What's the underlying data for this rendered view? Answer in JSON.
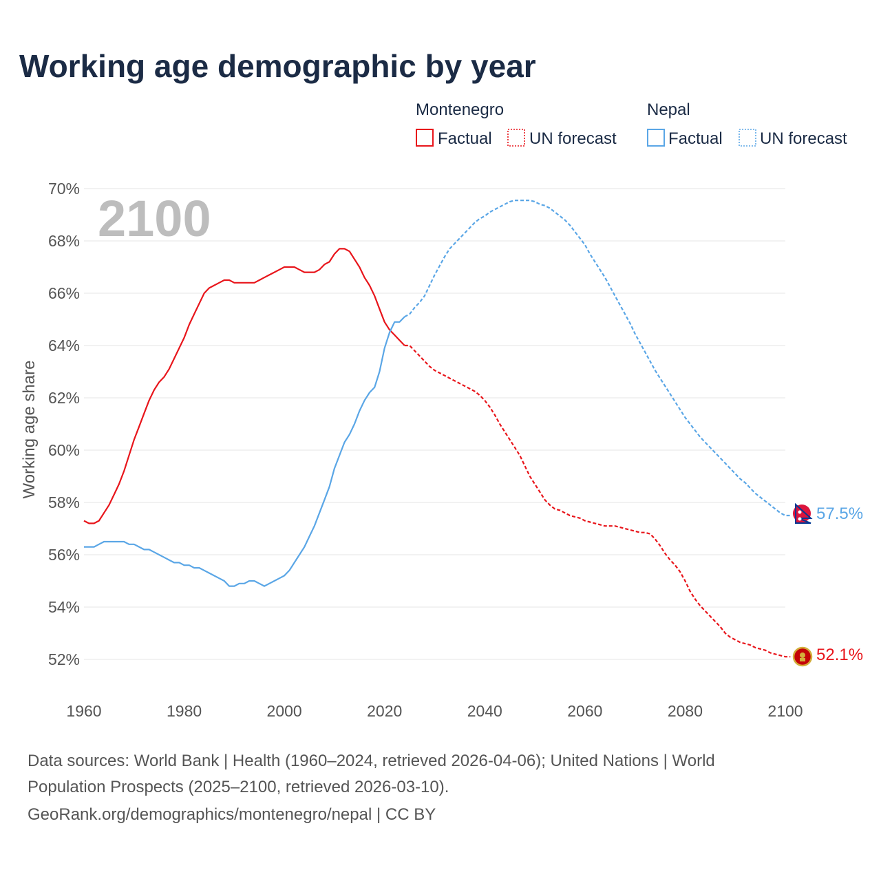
{
  "colors": {
    "montenegro": "#e8151b",
    "nepal": "#5aa6e6",
    "title": "#1b2b45",
    "grid": "#e6e6e6",
    "tick": "#555555",
    "year_overlay": "#bdbdbd"
  },
  "chart_data": {
    "type": "line",
    "title": "Working age demographic by year",
    "ylabel": "Working age share",
    "xlabel": "",
    "xlim": [
      1960,
      2104
    ],
    "ylim": [
      51,
      70.4
    ],
    "x_ticks": [
      {
        "value": 1960,
        "label": "1960"
      },
      {
        "value": 1980,
        "label": "1980"
      },
      {
        "value": 2000,
        "label": "2000"
      },
      {
        "value": 2020,
        "label": "2020"
      },
      {
        "value": 2040,
        "label": "2040"
      },
      {
        "value": 2060,
        "label": "2060"
      },
      {
        "value": 2080,
        "label": "2080"
      },
      {
        "value": 2100,
        "label": "2100"
      }
    ],
    "y_ticks": [
      {
        "value": 52,
        "label": "52%"
      },
      {
        "value": 54,
        "label": "54%"
      },
      {
        "value": 56,
        "label": "56%"
      },
      {
        "value": 58,
        "label": "58%"
      },
      {
        "value": 60,
        "label": "60%"
      },
      {
        "value": 62,
        "label": "62%"
      },
      {
        "value": 64,
        "label": "64%"
      },
      {
        "value": 66,
        "label": "66%"
      },
      {
        "value": 68,
        "label": "68%"
      },
      {
        "value": 70,
        "label": "70%"
      }
    ],
    "year_overlay": "2100",
    "legend": {
      "groups": [
        {
          "country": "Montenegro",
          "factual": "Factual",
          "forecast": "UN forecast",
          "series": "montenegro"
        },
        {
          "country": "Nepal",
          "factual": "Factual",
          "forecast": "UN forecast",
          "series": "nepal"
        }
      ]
    },
    "series": [
      {
        "name": "Montenegro",
        "key": "montenegro",
        "end_label": "52.1%",
        "factual": [
          [
            1960,
            57.3
          ],
          [
            1961,
            57.2
          ],
          [
            1962,
            57.2
          ],
          [
            1963,
            57.3
          ],
          [
            1964,
            57.6
          ],
          [
            1965,
            57.9
          ],
          [
            1966,
            58.3
          ],
          [
            1967,
            58.7
          ],
          [
            1968,
            59.2
          ],
          [
            1969,
            59.8
          ],
          [
            1970,
            60.4
          ],
          [
            1971,
            60.9
          ],
          [
            1972,
            61.4
          ],
          [
            1973,
            61.9
          ],
          [
            1974,
            62.3
          ],
          [
            1975,
            62.6
          ],
          [
            1976,
            62.8
          ],
          [
            1977,
            63.1
          ],
          [
            1978,
            63.5
          ],
          [
            1979,
            63.9
          ],
          [
            1980,
            64.3
          ],
          [
            1981,
            64.8
          ],
          [
            1982,
            65.2
          ],
          [
            1983,
            65.6
          ],
          [
            1984,
            66.0
          ],
          [
            1985,
            66.2
          ],
          [
            1986,
            66.3
          ],
          [
            1987,
            66.4
          ],
          [
            1988,
            66.5
          ],
          [
            1989,
            66.5
          ],
          [
            1990,
            66.4
          ],
          [
            1991,
            66.4
          ],
          [
            1992,
            66.4
          ],
          [
            1993,
            66.4
          ],
          [
            1994,
            66.4
          ],
          [
            1995,
            66.5
          ],
          [
            1996,
            66.6
          ],
          [
            1997,
            66.7
          ],
          [
            1998,
            66.8
          ],
          [
            1999,
            66.9
          ],
          [
            2000,
            67.0
          ],
          [
            2001,
            67.0
          ],
          [
            2002,
            67.0
          ],
          [
            2003,
            66.9
          ],
          [
            2004,
            66.8
          ],
          [
            2005,
            66.8
          ],
          [
            2006,
            66.8
          ],
          [
            2007,
            66.9
          ],
          [
            2008,
            67.1
          ],
          [
            2009,
            67.2
          ],
          [
            2010,
            67.5
          ],
          [
            2011,
            67.7
          ],
          [
            2012,
            67.7
          ],
          [
            2013,
            67.6
          ],
          [
            2014,
            67.3
          ],
          [
            2015,
            67.0
          ],
          [
            2016,
            66.6
          ],
          [
            2017,
            66.3
          ],
          [
            2018,
            65.9
          ],
          [
            2019,
            65.4
          ],
          [
            2020,
            64.9
          ],
          [
            2021,
            64.6
          ],
          [
            2022,
            64.4
          ],
          [
            2023,
            64.2
          ],
          [
            2024,
            64.0
          ]
        ],
        "forecast": [
          [
            2024,
            64.0
          ],
          [
            2025,
            64.0
          ],
          [
            2026,
            63.8
          ],
          [
            2027,
            63.6
          ],
          [
            2028,
            63.4
          ],
          [
            2029,
            63.2
          ],
          [
            2030,
            63.05
          ],
          [
            2031,
            62.95
          ],
          [
            2032,
            62.85
          ],
          [
            2033,
            62.75
          ],
          [
            2034,
            62.65
          ],
          [
            2035,
            62.55
          ],
          [
            2036,
            62.45
          ],
          [
            2037,
            62.35
          ],
          [
            2038,
            62.25
          ],
          [
            2039,
            62.1
          ],
          [
            2040,
            61.9
          ],
          [
            2041,
            61.65
          ],
          [
            2042,
            61.35
          ],
          [
            2043,
            61.0
          ],
          [
            2044,
            60.7
          ],
          [
            2045,
            60.4
          ],
          [
            2046,
            60.1
          ],
          [
            2047,
            59.8
          ],
          [
            2048,
            59.4
          ],
          [
            2049,
            59.0
          ],
          [
            2050,
            58.7
          ],
          [
            2051,
            58.4
          ],
          [
            2052,
            58.1
          ],
          [
            2053,
            57.9
          ],
          [
            2054,
            57.75
          ],
          [
            2055,
            57.7
          ],
          [
            2056,
            57.6
          ],
          [
            2057,
            57.5
          ],
          [
            2058,
            57.45
          ],
          [
            2059,
            57.4
          ],
          [
            2060,
            57.3
          ],
          [
            2061,
            57.25
          ],
          [
            2062,
            57.2
          ],
          [
            2063,
            57.15
          ],
          [
            2064,
            57.1
          ],
          [
            2065,
            57.1
          ],
          [
            2066,
            57.1
          ],
          [
            2067,
            57.05
          ],
          [
            2068,
            57.0
          ],
          [
            2069,
            56.95
          ],
          [
            2070,
            56.9
          ],
          [
            2071,
            56.85
          ],
          [
            2072,
            56.85
          ],
          [
            2073,
            56.8
          ],
          [
            2074,
            56.6
          ],
          [
            2075,
            56.35
          ],
          [
            2076,
            56.05
          ],
          [
            2077,
            55.8
          ],
          [
            2078,
            55.6
          ],
          [
            2079,
            55.35
          ],
          [
            2080,
            55.0
          ],
          [
            2081,
            54.6
          ],
          [
            2082,
            54.3
          ],
          [
            2083,
            54.05
          ],
          [
            2084,
            53.85
          ],
          [
            2085,
            53.65
          ],
          [
            2086,
            53.45
          ],
          [
            2087,
            53.25
          ],
          [
            2088,
            53.0
          ],
          [
            2089,
            52.85
          ],
          [
            2090,
            52.75
          ],
          [
            2091,
            52.65
          ],
          [
            2092,
            52.6
          ],
          [
            2093,
            52.55
          ],
          [
            2094,
            52.45
          ],
          [
            2095,
            52.4
          ],
          [
            2096,
            52.35
          ],
          [
            2097,
            52.25
          ],
          [
            2098,
            52.2
          ],
          [
            2099,
            52.15
          ],
          [
            2100,
            52.1
          ],
          [
            2101,
            52.1
          ]
        ]
      },
      {
        "name": "Nepal",
        "key": "nepal",
        "end_label": "57.5%",
        "factual": [
          [
            1960,
            56.3
          ],
          [
            1961,
            56.3
          ],
          [
            1962,
            56.3
          ],
          [
            1963,
            56.4
          ],
          [
            1964,
            56.5
          ],
          [
            1965,
            56.5
          ],
          [
            1966,
            56.5
          ],
          [
            1967,
            56.5
          ],
          [
            1968,
            56.5
          ],
          [
            1969,
            56.4
          ],
          [
            1970,
            56.4
          ],
          [
            1971,
            56.3
          ],
          [
            1972,
            56.2
          ],
          [
            1973,
            56.2
          ],
          [
            1974,
            56.1
          ],
          [
            1975,
            56.0
          ],
          [
            1976,
            55.9
          ],
          [
            1977,
            55.8
          ],
          [
            1978,
            55.7
          ],
          [
            1979,
            55.7
          ],
          [
            1980,
            55.6
          ],
          [
            1981,
            55.6
          ],
          [
            1982,
            55.5
          ],
          [
            1983,
            55.5
          ],
          [
            1984,
            55.4
          ],
          [
            1985,
            55.3
          ],
          [
            1986,
            55.2
          ],
          [
            1987,
            55.1
          ],
          [
            1988,
            55.0
          ],
          [
            1989,
            54.8
          ],
          [
            1990,
            54.8
          ],
          [
            1991,
            54.9
          ],
          [
            1992,
            54.9
          ],
          [
            1993,
            55.0
          ],
          [
            1994,
            55.0
          ],
          [
            1995,
            54.9
          ],
          [
            1996,
            54.8
          ],
          [
            1997,
            54.9
          ],
          [
            1998,
            55.0
          ],
          [
            1999,
            55.1
          ],
          [
            2000,
            55.2
          ],
          [
            2001,
            55.4
          ],
          [
            2002,
            55.7
          ],
          [
            2003,
            56.0
          ],
          [
            2004,
            56.3
          ],
          [
            2005,
            56.7
          ],
          [
            2006,
            57.1
          ],
          [
            2007,
            57.6
          ],
          [
            2008,
            58.1
          ],
          [
            2009,
            58.6
          ],
          [
            2010,
            59.3
          ],
          [
            2011,
            59.8
          ],
          [
            2012,
            60.3
          ],
          [
            2013,
            60.6
          ],
          [
            2014,
            61.0
          ],
          [
            2015,
            61.5
          ],
          [
            2016,
            61.9
          ],
          [
            2017,
            62.2
          ],
          [
            2018,
            62.4
          ],
          [
            2019,
            63.0
          ],
          [
            2020,
            63.9
          ],
          [
            2021,
            64.5
          ],
          [
            2022,
            64.9
          ],
          [
            2023,
            64.9
          ],
          [
            2024,
            65.1
          ]
        ],
        "forecast": [
          [
            2024,
            65.1
          ],
          [
            2025,
            65.2
          ],
          [
            2026,
            65.45
          ],
          [
            2027,
            65.65
          ],
          [
            2028,
            65.9
          ],
          [
            2029,
            66.3
          ],
          [
            2030,
            66.7
          ],
          [
            2031,
            67.05
          ],
          [
            2032,
            67.4
          ],
          [
            2033,
            67.7
          ],
          [
            2034,
            67.9
          ],
          [
            2035,
            68.1
          ],
          [
            2036,
            68.3
          ],
          [
            2037,
            68.5
          ],
          [
            2038,
            68.7
          ],
          [
            2039,
            68.85
          ],
          [
            2040,
            68.95
          ],
          [
            2041,
            69.1
          ],
          [
            2042,
            69.2
          ],
          [
            2043,
            69.3
          ],
          [
            2044,
            69.4
          ],
          [
            2045,
            69.5
          ],
          [
            2046,
            69.55
          ],
          [
            2047,
            69.55
          ],
          [
            2048,
            69.55
          ],
          [
            2049,
            69.55
          ],
          [
            2050,
            69.5
          ],
          [
            2051,
            69.4
          ],
          [
            2052,
            69.35
          ],
          [
            2053,
            69.25
          ],
          [
            2054,
            69.1
          ],
          [
            2055,
            68.95
          ],
          [
            2056,
            68.8
          ],
          [
            2057,
            68.6
          ],
          [
            2058,
            68.35
          ],
          [
            2059,
            68.1
          ],
          [
            2060,
            67.85
          ],
          [
            2061,
            67.5
          ],
          [
            2062,
            67.2
          ],
          [
            2063,
            66.9
          ],
          [
            2064,
            66.6
          ],
          [
            2065,
            66.25
          ],
          [
            2066,
            65.9
          ],
          [
            2067,
            65.55
          ],
          [
            2068,
            65.2
          ],
          [
            2069,
            64.85
          ],
          [
            2070,
            64.45
          ],
          [
            2071,
            64.1
          ],
          [
            2072,
            63.75
          ],
          [
            2073,
            63.4
          ],
          [
            2074,
            63.05
          ],
          [
            2075,
            62.75
          ],
          [
            2076,
            62.45
          ],
          [
            2077,
            62.15
          ],
          [
            2078,
            61.85
          ],
          [
            2079,
            61.55
          ],
          [
            2080,
            61.25
          ],
          [
            2081,
            61.0
          ],
          [
            2082,
            60.75
          ],
          [
            2083,
            60.5
          ],
          [
            2084,
            60.3
          ],
          [
            2085,
            60.1
          ],
          [
            2086,
            59.9
          ],
          [
            2087,
            59.7
          ],
          [
            2088,
            59.5
          ],
          [
            2089,
            59.3
          ],
          [
            2090,
            59.1
          ],
          [
            2091,
            58.9
          ],
          [
            2092,
            58.75
          ],
          [
            2093,
            58.55
          ],
          [
            2094,
            58.35
          ],
          [
            2095,
            58.2
          ],
          [
            2096,
            58.05
          ],
          [
            2097,
            57.9
          ],
          [
            2098,
            57.75
          ],
          [
            2099,
            57.6
          ],
          [
            2100,
            57.5
          ],
          [
            2101,
            57.5
          ]
        ]
      }
    ]
  },
  "footer": {
    "line1": "Data sources: World Bank | Health (1960–2024, retrieved 2026-04-06); United Nations | World",
    "line2": "Population Prospects (2025–2100, retrieved 2026-03-10).",
    "line3": "GeoRank.org/demographics/montenegro/nepal | CC BY"
  }
}
